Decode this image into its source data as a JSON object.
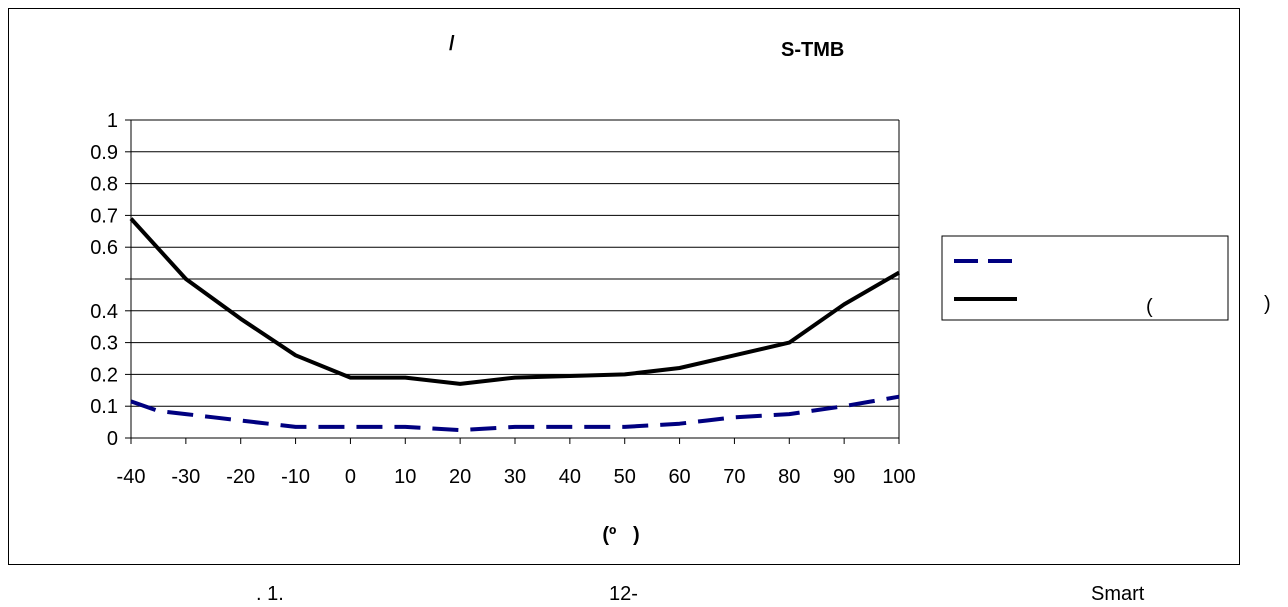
{
  "chart_data": {
    "type": "line",
    "title_left": "/",
    "title_right": "S-TMB",
    "xlabel": "(º   )",
    "x": [
      -40,
      -30,
      -20,
      -10,
      0,
      10,
      20,
      30,
      40,
      50,
      60,
      70,
      80,
      90,
      100
    ],
    "xlim": [
      -40,
      100
    ],
    "ylim": [
      0,
      1
    ],
    "y_ticks": [
      "0",
      "0.1",
      "0.2",
      "0.3",
      "0.4",
      "",
      "0.6",
      "0.7",
      "0.8",
      "0.9",
      "1"
    ],
    "grid": true,
    "legend_position": "right",
    "series": [
      {
        "name": "",
        "style": "dashed",
        "color": "#000080",
        "x": [
          -40,
          -35,
          -30,
          -25,
          -20,
          -15,
          -10,
          0,
          10,
          15,
          20,
          30,
          40,
          50,
          60,
          65,
          70,
          80,
          90,
          95,
          100
        ],
        "values": [
          0.115,
          0.085,
          0.075,
          0.065,
          0.055,
          0.045,
          0.035,
          0.035,
          0.035,
          0.03,
          0.025,
          0.035,
          0.035,
          0.035,
          0.045,
          0.055,
          0.065,
          0.075,
          0.1,
          0.115,
          0.13
        ]
      },
      {
        "name": "(",
        "name_suffix": ")",
        "style": "solid",
        "color": "#000000",
        "x": [
          -40,
          -30,
          -20,
          -10,
          0,
          10,
          20,
          30,
          40,
          50,
          60,
          70,
          80,
          90,
          100
        ],
        "values": [
          0.69,
          0.5,
          0.375,
          0.26,
          0.19,
          0.19,
          0.17,
          0.19,
          0.195,
          0.2,
          0.22,
          0.26,
          0.3,
          0.42,
          0.52
        ]
      }
    ]
  },
  "caption": {
    "part1": ". 1.",
    "part2": "12-",
    "part3": "Smart"
  }
}
